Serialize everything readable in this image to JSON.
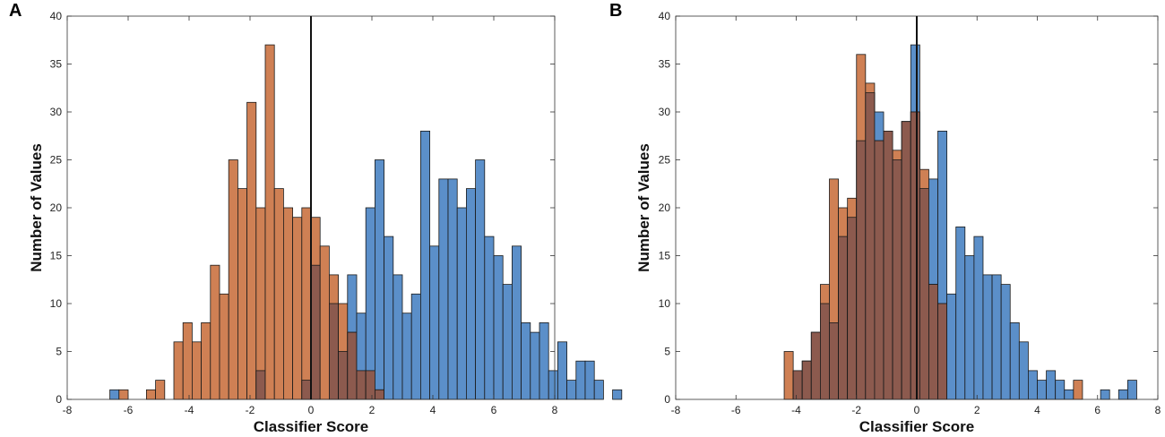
{
  "colors": {
    "series1": "#5b8fc9",
    "series2": "#cf8054",
    "overlap": "#8c5a4e",
    "edge": "#1a1a1a",
    "zero_line": "#111111"
  },
  "chart_data": [
    {
      "panel": "A",
      "type": "histogram",
      "xlabel": "Classifier Score",
      "ylabel": "Number of Values",
      "xlim": [
        -8,
        8
      ],
      "ylim": [
        0,
        40
      ],
      "xticks": [
        -8,
        -6,
        -4,
        -2,
        0,
        2,
        4,
        6,
        8
      ],
      "yticks": [
        0,
        5,
        10,
        15,
        20,
        25,
        30,
        35,
        40
      ],
      "vline_x": 0,
      "bin_start": -6.6,
      "bin_width": 0.3,
      "series": [
        {
          "name": "series1",
          "color": "#5b8fc9",
          "counts": [
            1,
            0,
            0,
            0,
            0,
            0,
            0,
            0,
            0,
            0,
            0,
            0,
            0,
            0,
            0,
            0,
            3,
            0,
            0,
            0,
            0,
            2,
            14,
            0,
            10,
            5,
            13,
            9,
            20,
            25,
            17,
            13,
            9,
            11,
            28,
            16,
            23,
            23,
            20,
            22,
            25,
            17,
            15,
            12,
            16,
            8,
            7,
            8,
            3,
            6,
            2,
            4,
            4,
            2,
            0,
            1
          ]
        },
        {
          "name": "series2",
          "color": "#cf8054",
          "counts": [
            0,
            1,
            0,
            0,
            1,
            2,
            0,
            6,
            8,
            6,
            8,
            14,
            11,
            25,
            22,
            31,
            20,
            37,
            22,
            20,
            19,
            20,
            19,
            16,
            13,
            10,
            7,
            3,
            3,
            1,
            0,
            0,
            0,
            0,
            0,
            0,
            0,
            0,
            0,
            0,
            0,
            0,
            0,
            0,
            0,
            0,
            0,
            0,
            0,
            0,
            0,
            0,
            0,
            0,
            0,
            0
          ]
        }
      ]
    },
    {
      "panel": "B",
      "type": "histogram",
      "xlabel": "Classifier Score",
      "ylabel": "Number of Values",
      "xlim": [
        -8,
        8
      ],
      "ylim": [
        0,
        40
      ],
      "xticks": [
        -8,
        -6,
        -4,
        -2,
        0,
        2,
        4,
        6,
        8
      ],
      "yticks": [
        0,
        5,
        10,
        15,
        20,
        25,
        30,
        35,
        40
      ],
      "vline_x": 0,
      "bin_start": -4.4,
      "bin_width": 0.3,
      "series": [
        {
          "name": "series1",
          "color": "#5b8fc9",
          "counts": [
            0,
            3,
            4,
            7,
            10,
            8,
            17,
            19,
            27,
            32,
            30,
            28,
            25,
            29,
            37,
            22,
            23,
            28,
            11,
            18,
            15,
            17,
            13,
            13,
            12,
            8,
            6,
            3,
            2,
            3,
            2,
            1,
            0,
            0,
            0,
            1,
            0,
            1,
            2
          ]
        },
        {
          "name": "series2",
          "color": "#cf8054",
          "counts": [
            5,
            3,
            4,
            7,
            12,
            23,
            20,
            21,
            36,
            33,
            27,
            28,
            26,
            29,
            30,
            24,
            12,
            10,
            0,
            0,
            0,
            0,
            0,
            0,
            0,
            0,
            0,
            0,
            0,
            0,
            0,
            0,
            2,
            0,
            0,
            0,
            0,
            0,
            0
          ]
        }
      ]
    }
  ],
  "panels": [
    {
      "label": "A"
    },
    {
      "label": "B"
    }
  ]
}
